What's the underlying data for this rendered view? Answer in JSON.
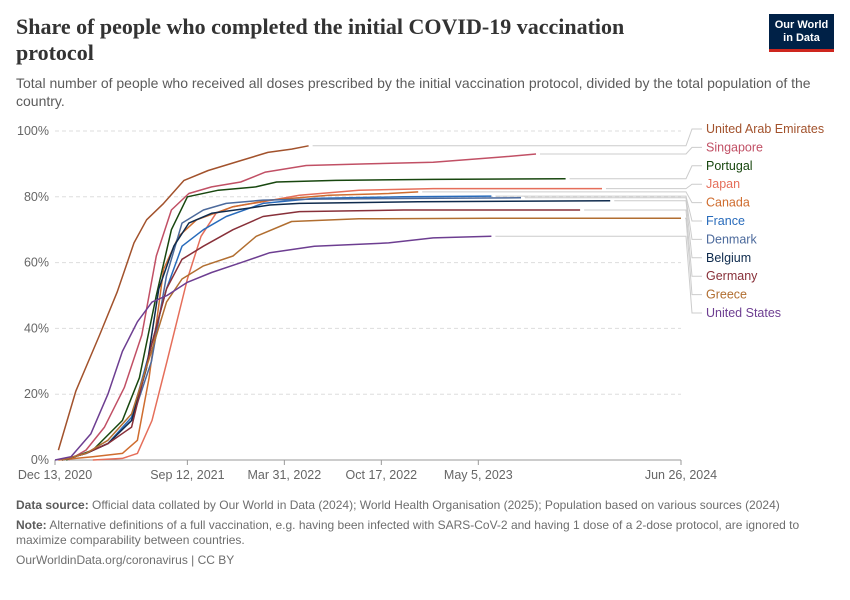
{
  "header": {
    "title": "Share of people who completed the initial COVID-19 vaccination protocol",
    "subtitle": "Total number of people who received all doses prescribed by the initial vaccination protocol, divided by the total population of the country.",
    "logo_line1": "Our World",
    "logo_line2": "in Data"
  },
  "footer": {
    "source_label": "Data source:",
    "source_text": "Official data collated by Our World in Data (2024); World Health Organisation (2025); Population based on various sources (2024)",
    "note_label": "Note:",
    "note_text": "Alternative definitions of a full vaccination, e.g. having been infected with SARS-CoV-2 and having 1 dose of a 2-dose protocol, are ignored to maximize comparability between countries.",
    "credit": "OurWorldinData.org/coronavirus | CC BY"
  },
  "chart_data": {
    "type": "line",
    "title": "Share of people who completed the initial COVID-19 vaccination protocol",
    "ylim": [
      0,
      100
    ],
    "y_ticks": [
      0,
      20,
      40,
      60,
      80,
      100
    ],
    "y_tick_labels": [
      "0%",
      "20%",
      "40%",
      "60%",
      "80%",
      "100%"
    ],
    "x_range": [
      "2020-12-13",
      "2024-06-26"
    ],
    "x_ticks": [
      "2020-12-13",
      "2021-09-12",
      "2022-03-31",
      "2022-10-17",
      "2023-05-05",
      "2024-06-26"
    ],
    "x_tick_labels": [
      "Dec 13, 2020",
      "Sep 12, 2021",
      "Mar 31, 2022",
      "Oct 17, 2022",
      "May 5, 2023",
      "Jun 26, 2024"
    ],
    "grid": true,
    "legend_position": "right",
    "series": [
      {
        "name": "United Arab Emirates",
        "color": "#a2522c",
        "points": [
          [
            "2020-12-20",
            3
          ],
          [
            "2021-01-25",
            21
          ],
          [
            "2021-03-15",
            38
          ],
          [
            "2021-04-20",
            51
          ],
          [
            "2021-05-25",
            66
          ],
          [
            "2021-06-20",
            73
          ],
          [
            "2021-07-25",
            78
          ],
          [
            "2021-09-05",
            85
          ],
          [
            "2021-10-25",
            88
          ],
          [
            "2021-12-31",
            91
          ],
          [
            "2022-02-25",
            93.5
          ],
          [
            "2022-04-15",
            94.5
          ],
          [
            "2022-05-20",
            95.5
          ]
        ]
      },
      {
        "name": "Singapore",
        "color": "#c15065",
        "points": [
          [
            "2021-01-10",
            0
          ],
          [
            "2021-02-15",
            3
          ],
          [
            "2021-03-25",
            10
          ],
          [
            "2021-05-05",
            22
          ],
          [
            "2021-06-10",
            38
          ],
          [
            "2021-07-10",
            62
          ],
          [
            "2021-08-10",
            76
          ],
          [
            "2021-09-15",
            81
          ],
          [
            "2021-11-01",
            83
          ],
          [
            "2021-12-31",
            84.5
          ],
          [
            "2022-02-20",
            87.5
          ],
          [
            "2022-05-15",
            89.5
          ],
          [
            "2022-09-15",
            90
          ],
          [
            "2023-02-01",
            90.5
          ],
          [
            "2023-06-15",
            92
          ],
          [
            "2023-09-01",
            93
          ]
        ]
      },
      {
        "name": "Portugal",
        "color": "#18470f",
        "points": [
          [
            "2021-01-05",
            0
          ],
          [
            "2021-03-01",
            3
          ],
          [
            "2021-05-01",
            12
          ],
          [
            "2021-06-05",
            25
          ],
          [
            "2021-07-10",
            50
          ],
          [
            "2021-08-10",
            70
          ],
          [
            "2021-09-12",
            80
          ],
          [
            "2021-11-15",
            82
          ],
          [
            "2022-01-31",
            83
          ],
          [
            "2022-03-15",
            84.5
          ],
          [
            "2022-07-15",
            85
          ],
          [
            "2023-02-01",
            85.3
          ],
          [
            "2023-11-01",
            85.5
          ]
        ]
      },
      {
        "name": "Japan",
        "color": "#e56e5a",
        "points": [
          [
            "2021-03-01",
            0
          ],
          [
            "2021-05-01",
            0.5
          ],
          [
            "2021-06-01",
            2
          ],
          [
            "2021-07-01",
            12
          ],
          [
            "2021-08-01",
            30
          ],
          [
            "2021-09-12",
            55
          ],
          [
            "2021-10-10",
            68
          ],
          [
            "2021-11-10",
            75
          ],
          [
            "2021-12-15",
            77
          ],
          [
            "2022-02-15",
            78.5
          ],
          [
            "2022-05-01",
            80.5
          ],
          [
            "2022-09-01",
            82
          ],
          [
            "2023-02-01",
            82.5
          ],
          [
            "2024-01-15",
            82.5
          ]
        ]
      },
      {
        "name": "Canada",
        "color": "#cf6d2f",
        "points": [
          [
            "2020-12-20",
            0
          ],
          [
            "2021-03-01",
            1
          ],
          [
            "2021-05-01",
            2
          ],
          [
            "2021-06-01",
            6
          ],
          [
            "2021-06-25",
            25
          ],
          [
            "2021-07-25",
            58
          ],
          [
            "2021-08-25",
            68
          ],
          [
            "2021-10-01",
            73
          ],
          [
            "2021-12-15",
            77
          ],
          [
            "2022-03-01",
            79
          ],
          [
            "2022-07-01",
            80.5
          ],
          [
            "2022-11-01",
            81
          ],
          [
            "2023-01-01",
            81.5
          ]
        ]
      },
      {
        "name": "France",
        "color": "#286bbb",
        "points": [
          [
            "2020-12-27",
            0
          ],
          [
            "2021-02-15",
            2
          ],
          [
            "2021-04-01",
            5
          ],
          [
            "2021-05-20",
            13
          ],
          [
            "2021-06-30",
            35
          ],
          [
            "2021-07-31",
            52
          ],
          [
            "2021-09-01",
            65
          ],
          [
            "2021-10-15",
            70
          ],
          [
            "2021-12-01",
            74
          ],
          [
            "2022-02-15",
            78
          ],
          [
            "2022-06-01",
            79.5
          ],
          [
            "2022-12-01",
            80
          ],
          [
            "2023-06-01",
            80.2
          ]
        ]
      },
      {
        "name": "Denmark",
        "color": "#4c6a9c",
        "points": [
          [
            "2020-12-27",
            0
          ],
          [
            "2021-02-15",
            2
          ],
          [
            "2021-04-01",
            5
          ],
          [
            "2021-05-20",
            12
          ],
          [
            "2021-06-30",
            30
          ],
          [
            "2021-07-31",
            56
          ],
          [
            "2021-09-01",
            72
          ],
          [
            "2021-10-15",
            76
          ],
          [
            "2021-12-01",
            78
          ],
          [
            "2022-02-15",
            79
          ],
          [
            "2022-06-01",
            79.3
          ],
          [
            "2023-01-01",
            79.5
          ],
          [
            "2023-08-01",
            79.7
          ]
        ]
      },
      {
        "name": "Belgium",
        "color": "#0f2b4d",
        "points": [
          [
            "2020-12-28",
            0
          ],
          [
            "2021-02-15",
            2
          ],
          [
            "2021-04-01",
            5
          ],
          [
            "2021-05-20",
            12
          ],
          [
            "2021-06-20",
            28
          ],
          [
            "2021-07-15",
            52
          ],
          [
            "2021-08-15",
            65
          ],
          [
            "2021-09-15",
            72
          ],
          [
            "2021-11-01",
            75
          ],
          [
            "2022-01-15",
            76.5
          ],
          [
            "2022-03-01",
            77.5
          ],
          [
            "2022-05-01",
            78
          ],
          [
            "2023-01-01",
            78.5
          ],
          [
            "2024-02-01",
            78.8
          ]
        ]
      },
      {
        "name": "Germany",
        "color": "#883039",
        "points": [
          [
            "2020-12-27",
            0
          ],
          [
            "2021-02-15",
            2
          ],
          [
            "2021-04-01",
            5
          ],
          [
            "2021-05-20",
            10
          ],
          [
            "2021-06-30",
            35
          ],
          [
            "2021-07-31",
            52
          ],
          [
            "2021-09-01",
            61
          ],
          [
            "2021-10-15",
            65
          ],
          [
            "2021-12-15",
            70
          ],
          [
            "2022-02-15",
            74
          ],
          [
            "2022-05-01",
            75.5
          ],
          [
            "2022-12-01",
            76
          ],
          [
            "2023-12-01",
            76
          ]
        ]
      },
      {
        "name": "Greece",
        "color": "#b16e30",
        "points": [
          [
            "2020-12-27",
            0
          ],
          [
            "2021-02-15",
            2
          ],
          [
            "2021-04-01",
            6
          ],
          [
            "2021-05-20",
            14
          ],
          [
            "2021-06-30",
            33
          ],
          [
            "2021-07-31",
            48
          ],
          [
            "2021-09-01",
            55
          ],
          [
            "2021-10-15",
            59
          ],
          [
            "2021-12-15",
            62
          ],
          [
            "2022-02-01",
            68
          ],
          [
            "2022-04-15",
            72.5
          ],
          [
            "2022-09-01",
            73.3
          ],
          [
            "2023-06-01",
            73.5
          ],
          [
            "2024-06-26",
            73.5
          ]
        ]
      },
      {
        "name": "United States",
        "color": "#6d3e91",
        "points": [
          [
            "2020-12-13",
            0
          ],
          [
            "2021-01-15",
            1
          ],
          [
            "2021-02-25",
            8
          ],
          [
            "2021-04-01",
            20
          ],
          [
            "2021-05-01",
            33
          ],
          [
            "2021-06-01",
            42
          ],
          [
            "2021-07-01",
            48
          ],
          [
            "2021-08-01",
            50
          ],
          [
            "2021-09-12",
            54
          ],
          [
            "2021-11-01",
            57
          ],
          [
            "2022-01-01",
            60
          ],
          [
            "2022-03-01",
            63
          ],
          [
            "2022-06-01",
            65
          ],
          [
            "2022-11-01",
            66
          ],
          [
            "2023-02-01",
            67.5
          ],
          [
            "2023-06-01",
            68
          ]
        ]
      }
    ]
  }
}
